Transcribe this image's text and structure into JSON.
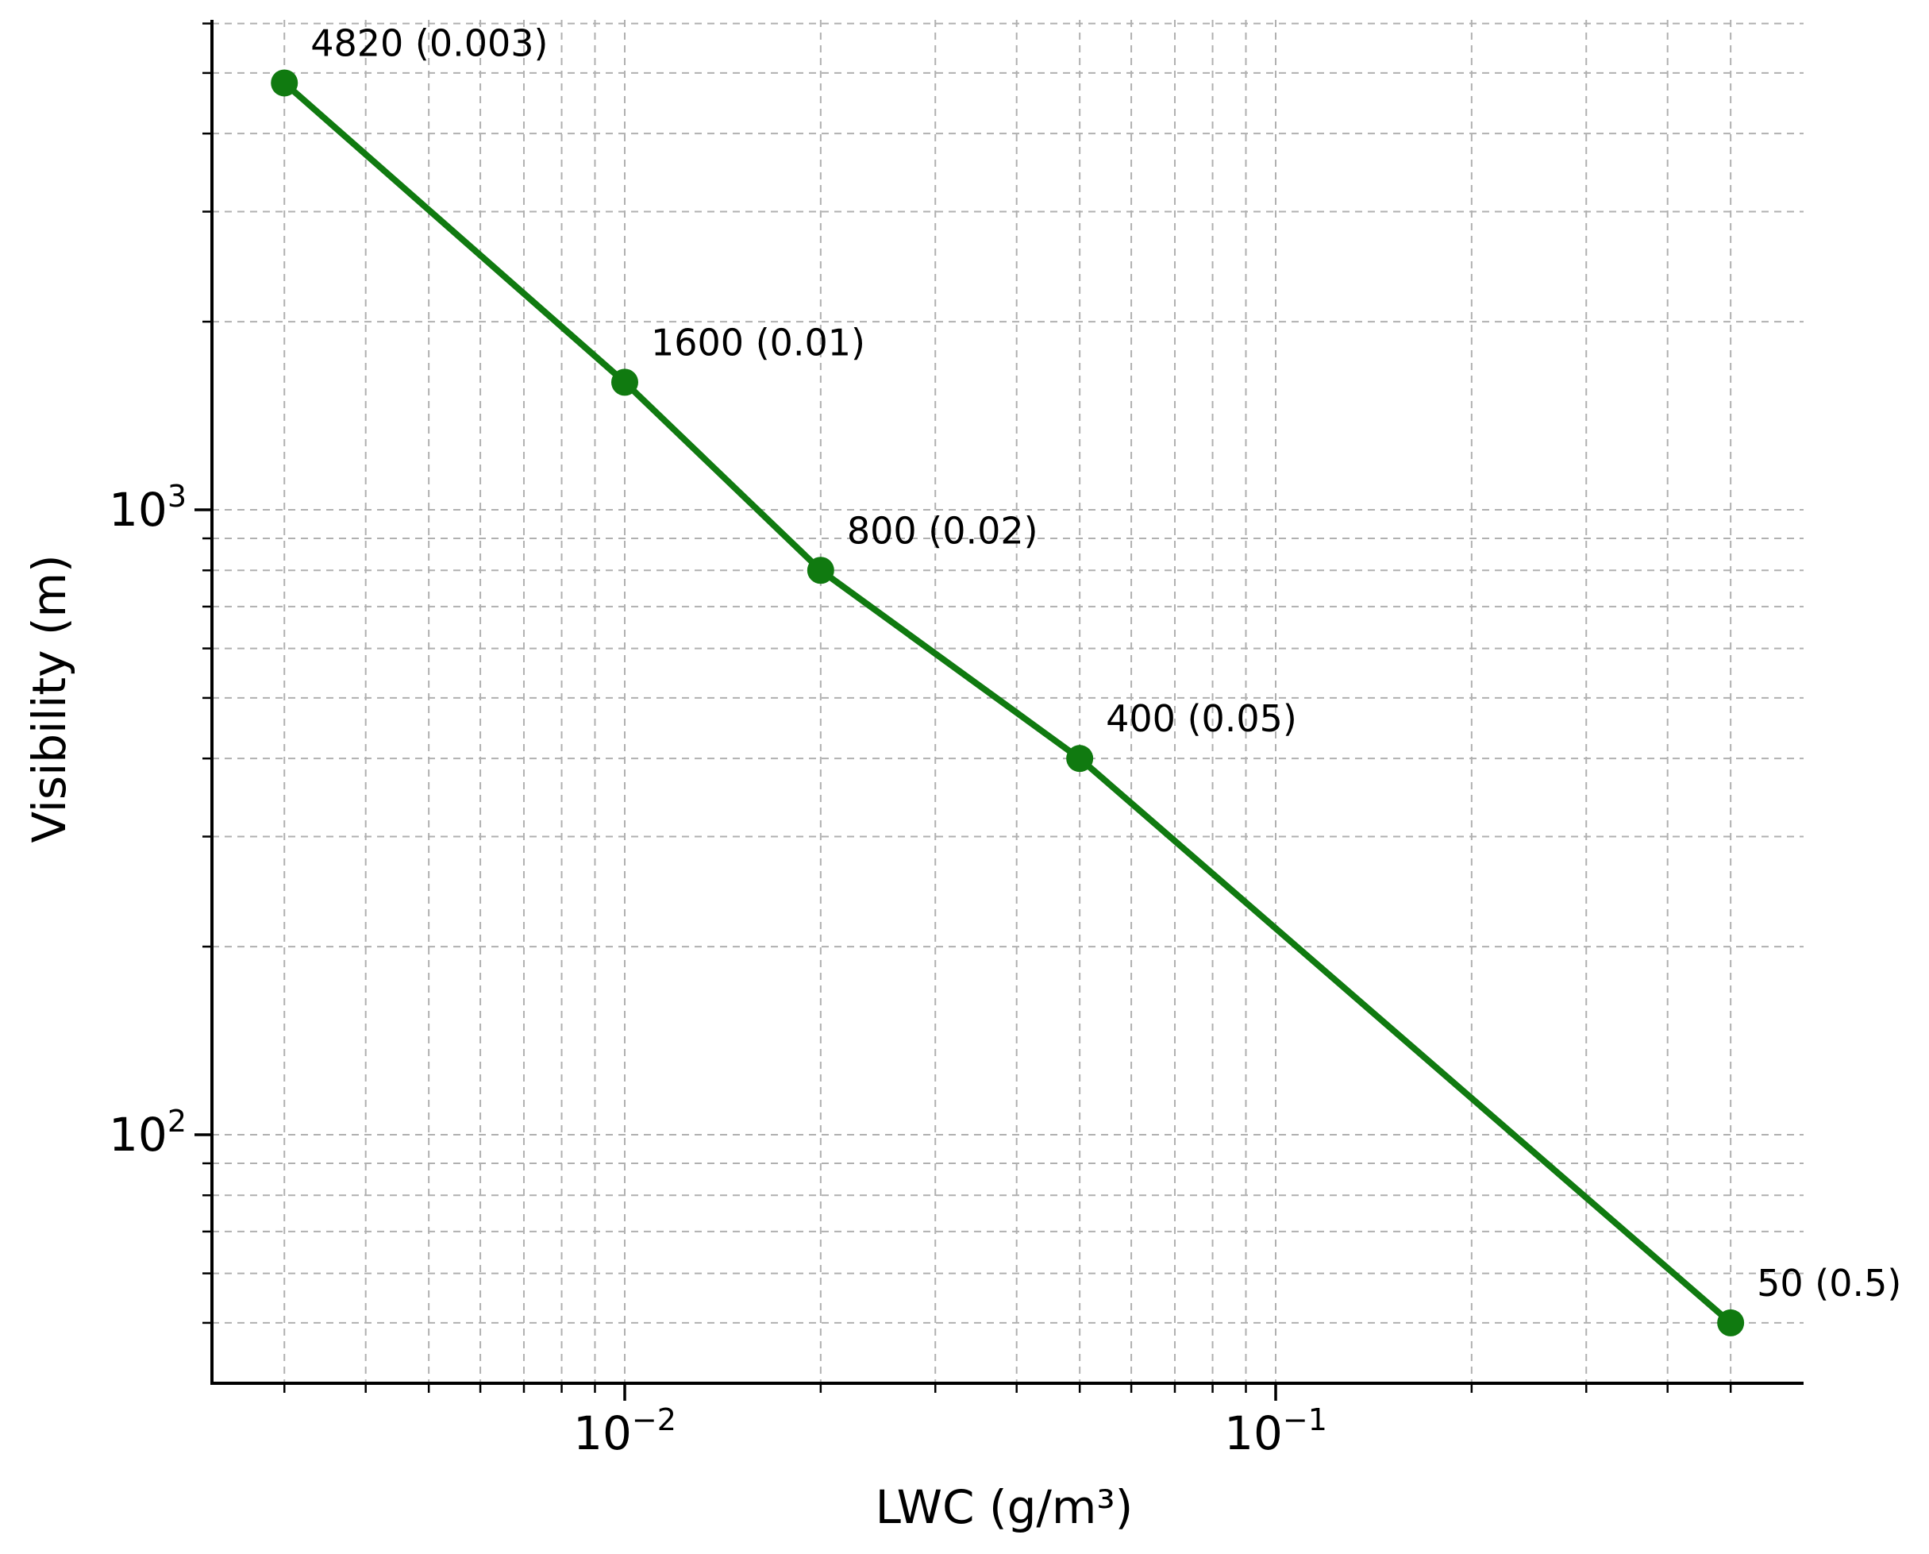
{
  "chart_data": {
    "type": "line",
    "title": "",
    "xlabel": "LWC (g/m³)",
    "ylabel": "Visibility (m)",
    "xscale": "log",
    "yscale": "log",
    "xlim": [
      0.0025,
      0.6
    ],
    "ylim": [
      45,
      6000
    ],
    "grid": "on (major and minor, dashed)",
    "legend": "none",
    "x_ticks": [
      {
        "value": 0.01,
        "base": "10",
        "exp": "−2"
      },
      {
        "value": 0.1,
        "base": "10",
        "exp": "−1"
      }
    ],
    "y_ticks": [
      {
        "value": 100,
        "base": "10",
        "exp": "2"
      },
      {
        "value": 1000,
        "base": "10",
        "exp": "3"
      }
    ],
    "series": [
      {
        "color": "#107a10",
        "points": [
          {
            "x": 0.003,
            "y": 4820,
            "label": "4820 (0.003)"
          },
          {
            "x": 0.01,
            "y": 1600,
            "label": "1600 (0.01)"
          },
          {
            "x": 0.02,
            "y": 800,
            "label": "800 (0.02)"
          },
          {
            "x": 0.05,
            "y": 400,
            "label": "400 (0.05)"
          },
          {
            "x": 0.5,
            "y": 50,
            "label": "50 (0.5)"
          }
        ]
      }
    ]
  }
}
